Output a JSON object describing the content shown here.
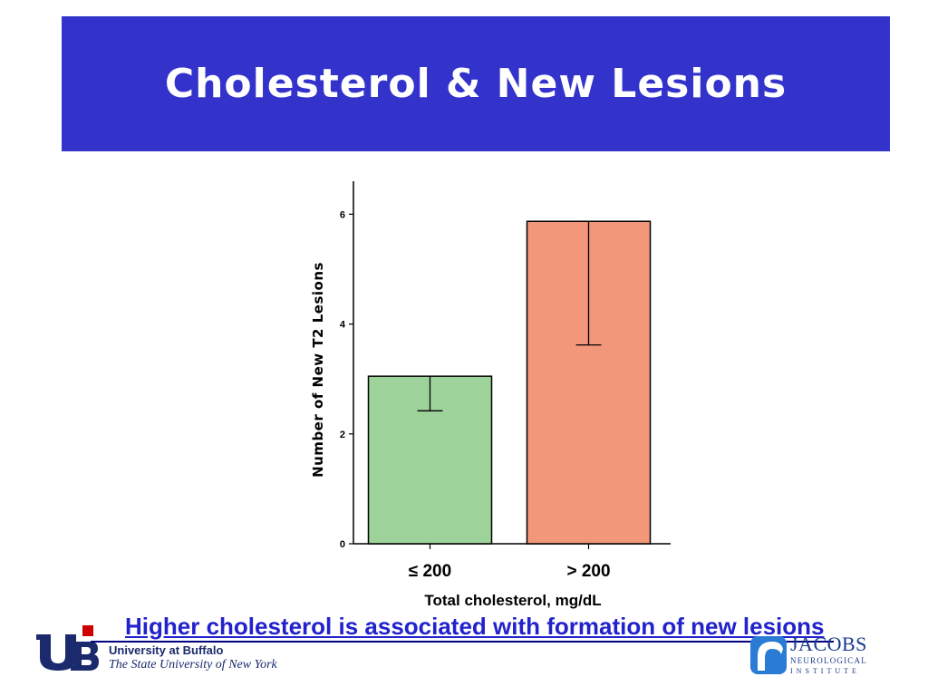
{
  "slide": {
    "title": "Cholesterol & New Lesions",
    "bullet": "Higher cholesterol is associated with formation of new lesions"
  },
  "chart_data": {
    "type": "bar",
    "categories": [
      "≤ 200",
      "> 200"
    ],
    "values": [
      3.05,
      5.87
    ],
    "error_lower": [
      2.42,
      3.62
    ],
    "bar_colors": [
      "#9dd39b",
      "#f3977b"
    ],
    "xlabel": "Total cholesterol, mg/dL",
    "ylabel": "Number of New T2 Lesions",
    "ylim": [
      0,
      6.6
    ],
    "yticks": [
      0,
      2,
      4,
      6
    ],
    "grid": false,
    "legend": "none"
  },
  "footer": {
    "university_name": "University at Buffalo",
    "university_subline": "The State University of New York",
    "partner_name": "JACOBS",
    "partner_line1": "NEUROLOGICAL",
    "partner_line2": "INSTITUTE"
  },
  "colors": {
    "title_banner": "#3333cc",
    "title_text": "#ffffff",
    "bullet_text": "#2222cc",
    "bullet_marker": "#cc0000",
    "logo_blue": "#1a3a8c"
  }
}
